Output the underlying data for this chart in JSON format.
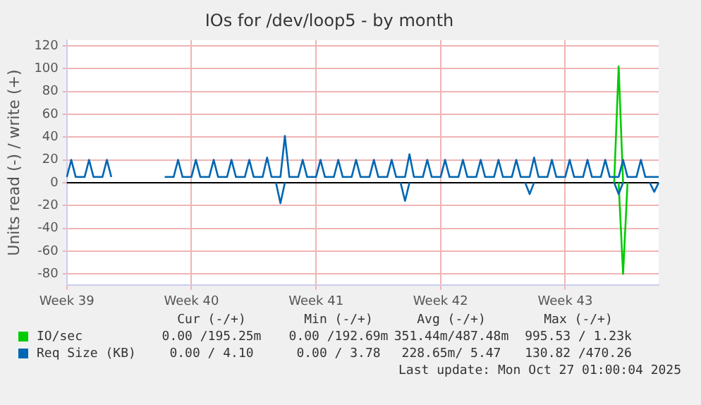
{
  "chart_data": {
    "type": "line",
    "title": "IOs for /dev/loop5 - by month",
    "ylabel": "Units read (-) / write (+)",
    "categories": [
      "Week 39",
      null,
      null,
      null,
      null,
      null,
      null,
      null,
      null,
      null,
      null,
      null,
      null,
      null,
      null,
      null,
      null,
      null,
      null,
      null,
      null,
      null,
      null,
      null,
      null,
      null,
      null,
      null,
      "Week 40",
      null,
      null,
      null,
      null,
      null,
      null,
      null,
      null,
      null,
      null,
      null,
      null,
      null,
      null,
      null,
      null,
      null,
      null,
      null,
      null,
      null,
      null,
      null,
      null,
      null,
      null,
      null,
      "Week 41",
      null,
      null,
      null,
      null,
      null,
      null,
      null,
      null,
      null,
      null,
      null,
      null,
      null,
      null,
      null,
      null,
      null,
      null,
      null,
      null,
      null,
      null,
      null,
      null,
      null,
      null,
      null,
      "Week 42",
      null,
      null,
      null,
      null,
      null,
      null,
      null,
      null,
      null,
      null,
      null,
      null,
      null,
      null,
      null,
      null,
      null,
      null,
      null,
      null,
      null,
      null,
      null,
      null,
      null,
      null,
      null,
      "Week 43",
      null,
      null,
      null,
      null,
      null,
      null,
      null,
      null,
      null,
      null,
      null,
      null,
      null,
      null,
      null,
      null,
      null,
      null,
      null,
      null,
      null
    ],
    "ylim": [
      -90,
      125
    ],
    "yticks": [
      -80,
      -60,
      -40,
      -20,
      0,
      20,
      40,
      60,
      80,
      100,
      120
    ],
    "grid": true,
    "legend": "bottom",
    "marker": "none",
    "line_style": "solid",
    "ref_lines": [
      {
        "axis": "y",
        "value": 0,
        "color": "#000000"
      }
    ],
    "series": [
      {
        "name": "Req Size (KB)",
        "color": "#0066b3",
        "values": [
          5,
          20,
          5,
          5,
          5,
          20,
          5,
          5,
          5,
          20,
          5,
          null,
          null,
          null,
          null,
          null,
          null,
          null,
          null,
          null,
          null,
          null,
          5,
          5,
          5,
          20,
          5,
          5,
          5,
          20,
          5,
          5,
          5,
          20,
          5,
          5,
          5,
          20,
          5,
          5,
          5,
          20,
          5,
          5,
          5,
          22,
          5,
          5,
          5,
          41,
          5,
          5,
          5,
          20,
          5,
          5,
          5,
          20,
          5,
          5,
          5,
          20,
          5,
          5,
          5,
          20,
          5,
          5,
          5,
          20,
          5,
          5,
          5,
          20,
          5,
          5,
          5,
          25,
          5,
          5,
          5,
          20,
          5,
          5,
          5,
          20,
          5,
          5,
          5,
          20,
          5,
          5,
          5,
          20,
          5,
          5,
          5,
          20,
          5,
          5,
          5,
          20,
          5,
          5,
          5,
          22,
          5,
          5,
          5,
          20,
          5,
          5,
          5,
          20,
          5,
          5,
          5,
          20,
          5,
          5,
          5,
          20,
          5,
          5,
          5,
          20,
          5,
          5,
          5,
          20,
          5,
          5,
          5,
          5
        ]
      },
      {
        "color": "#0066b3",
        "values": [
          null,
          null,
          null,
          null,
          null,
          null,
          null,
          null,
          null,
          null,
          null,
          null,
          null,
          null,
          null,
          null,
          null,
          null,
          null,
          null,
          null,
          null,
          null,
          null,
          null,
          null,
          null,
          null,
          null,
          null,
          null,
          null,
          null,
          null,
          null,
          null,
          null,
          null,
          null,
          null,
          null,
          null,
          null,
          null,
          null,
          null,
          null,
          0,
          -18,
          0,
          null,
          null,
          null,
          null,
          null,
          null,
          null,
          null,
          null,
          null,
          null,
          null,
          null,
          null,
          null,
          null,
          null,
          null,
          null,
          null,
          null,
          null,
          null,
          null,
          null,
          0,
          -16,
          0,
          null,
          null,
          null,
          null,
          null,
          null,
          null,
          null,
          null,
          null,
          null,
          null,
          null,
          null,
          null,
          null,
          null,
          null,
          null,
          null,
          null,
          null,
          null,
          null,
          null,
          0,
          -10,
          0,
          null,
          null,
          null,
          null,
          null,
          null,
          null,
          null,
          null,
          null,
          null,
          null,
          null,
          null,
          null,
          null,
          null,
          0,
          -10,
          0,
          null,
          null,
          null,
          null,
          null,
          0,
          -8,
          0
        ]
      },
      {
        "name": "IO/sec",
        "color": "#00cc00",
        "values": [
          null,
          null,
          null,
          null,
          null,
          null,
          null,
          null,
          null,
          null,
          null,
          null,
          null,
          null,
          null,
          null,
          null,
          null,
          null,
          null,
          null,
          null,
          null,
          null,
          null,
          null,
          null,
          null,
          null,
          null,
          null,
          null,
          null,
          null,
          null,
          null,
          null,
          null,
          null,
          null,
          null,
          null,
          null,
          null,
          null,
          null,
          null,
          null,
          null,
          null,
          null,
          null,
          null,
          null,
          null,
          null,
          null,
          null,
          null,
          null,
          null,
          null,
          null,
          null,
          null,
          null,
          null,
          null,
          null,
          null,
          null,
          null,
          null,
          null,
          null,
          null,
          null,
          null,
          null,
          null,
          null,
          null,
          null,
          null,
          null,
          null,
          null,
          null,
          null,
          null,
          null,
          null,
          null,
          null,
          null,
          null,
          null,
          null,
          null,
          null,
          null,
          null,
          null,
          null,
          null,
          null,
          null,
          null,
          null,
          null,
          null,
          null,
          null,
          null,
          null,
          null,
          null,
          null,
          null,
          null,
          null,
          null,
          null,
          0,
          102,
          0,
          null,
          null,
          null,
          null,
          null,
          null,
          null,
          null
        ]
      },
      {
        "color": "#00cc00",
        "values": [
          null,
          null,
          null,
          null,
          null,
          null,
          null,
          null,
          null,
          null,
          null,
          null,
          null,
          null,
          null,
          null,
          null,
          null,
          null,
          null,
          null,
          null,
          null,
          null,
          null,
          null,
          null,
          null,
          null,
          null,
          null,
          null,
          null,
          null,
          null,
          null,
          null,
          null,
          null,
          null,
          null,
          null,
          null,
          null,
          null,
          null,
          null,
          null,
          null,
          null,
          null,
          null,
          null,
          null,
          null,
          null,
          null,
          null,
          null,
          null,
          null,
          null,
          null,
          null,
          null,
          null,
          null,
          null,
          null,
          null,
          null,
          null,
          null,
          null,
          null,
          null,
          null,
          null,
          null,
          null,
          null,
          null,
          null,
          null,
          null,
          null,
          null,
          null,
          null,
          null,
          null,
          null,
          null,
          null,
          null,
          null,
          null,
          null,
          null,
          null,
          null,
          null,
          null,
          null,
          null,
          null,
          null,
          null,
          null,
          null,
          null,
          null,
          null,
          null,
          null,
          null,
          null,
          null,
          null,
          null,
          null,
          null,
          null,
          null,
          0,
          -80,
          0,
          null,
          null,
          null,
          null,
          null,
          null,
          null
        ]
      }
    ],
    "annotations": [
      "Cur (-/+)",
      "Min (-/+)",
      "Avg (-/+)",
      "Max (-/+)",
      "0.00 /195.25m",
      "0.00 /192.69m",
      "351.44m/487.48m",
      "995.53 / 1.23k",
      "0.00 / 4.10",
      "0.00 / 3.78",
      "228.65m/ 5.47",
      "130.82 /470.26",
      "Last update: Mon Oct 27 01:00:04 2025"
    ]
  }
}
